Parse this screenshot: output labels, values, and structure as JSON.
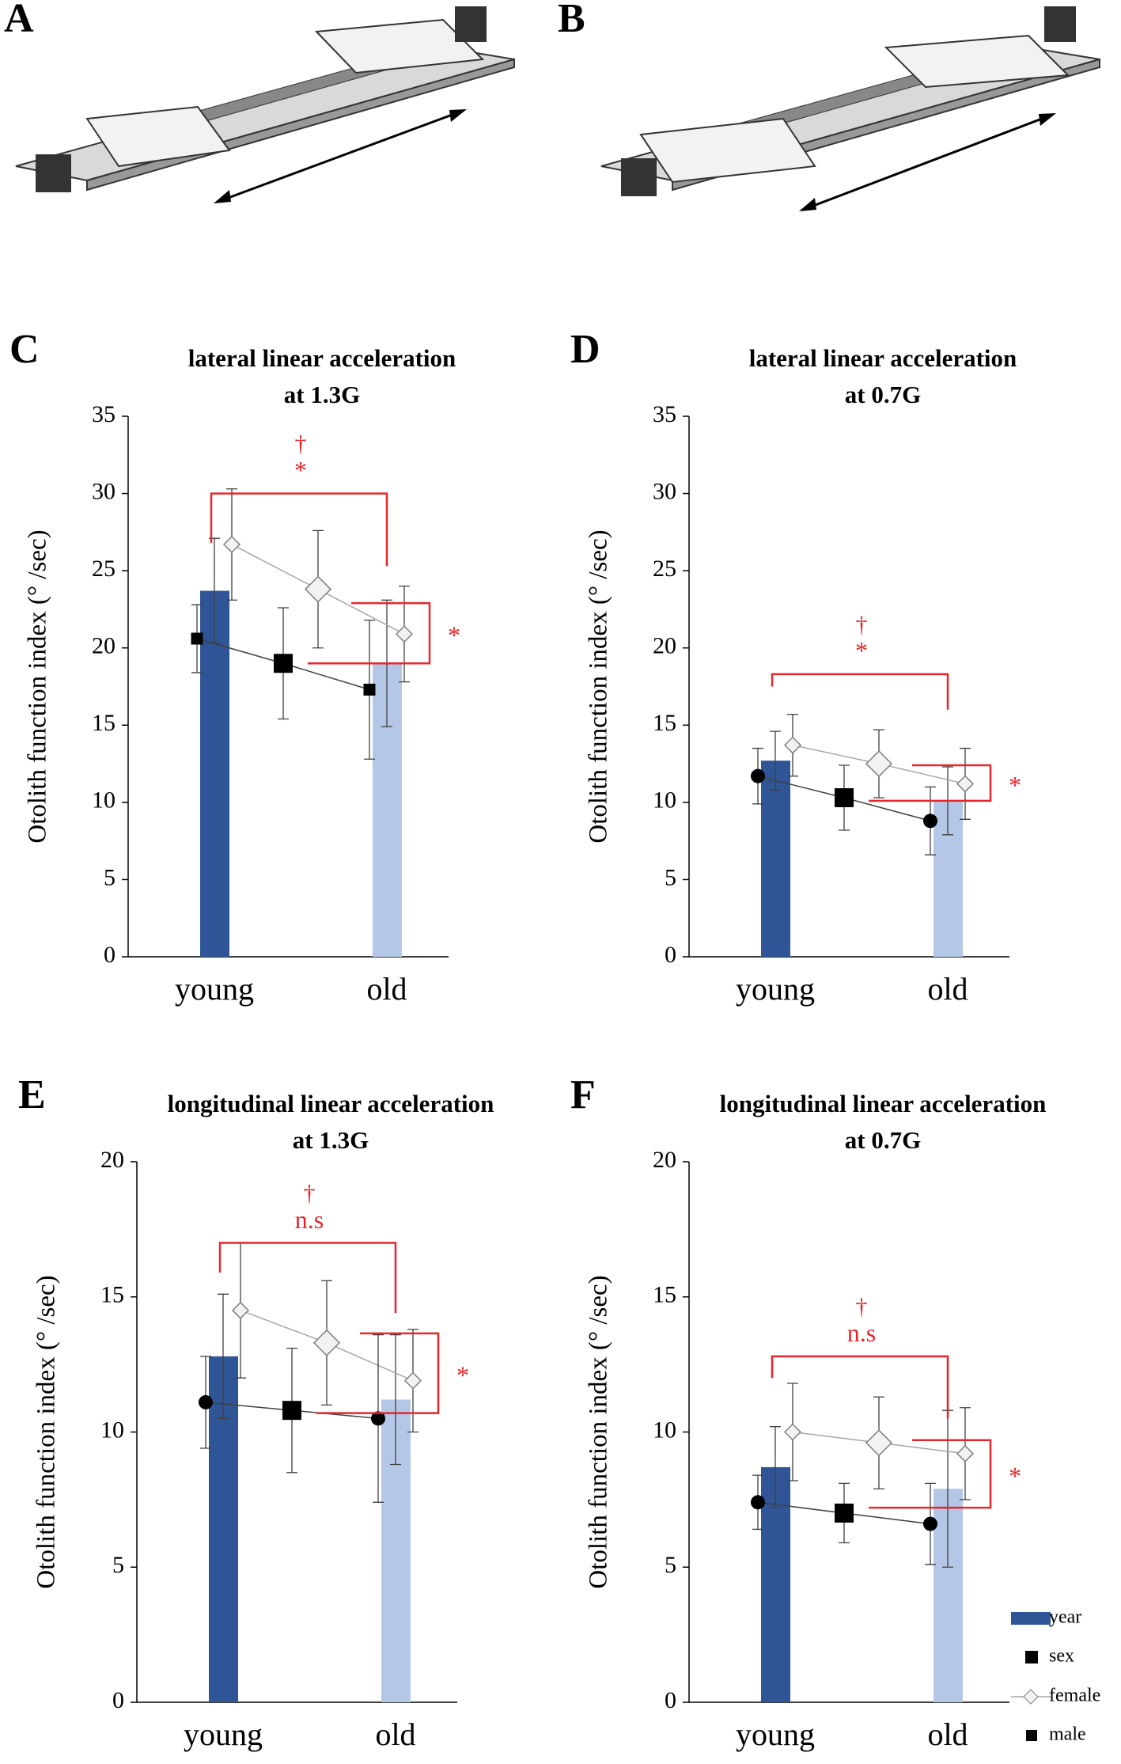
{
  "panel_labels": [
    "A",
    "B"
  ],
  "chart_data": [
    {
      "panel": "C",
      "type": "bar",
      "title": "lateral linear acceleration",
      "subtitle": "at 1.3G",
      "y_label": "Otolith function index (°  /sec)",
      "categories": [
        "young",
        null,
        "old"
      ],
      "ylim": [
        0,
        35
      ],
      "yticks": [
        0,
        5,
        10,
        15,
        20,
        25,
        30,
        35
      ],
      "male_end_marker": "square",
      "series": [
        {
          "type": "bar",
          "colors": [
            "#2f5597",
            null,
            "#b4c7e7"
          ],
          "values": [
            23.7,
            null,
            19.0
          ],
          "errors": [
            3.4,
            null,
            4.1
          ]
        },
        {
          "type": "line",
          "color": "#a6a6a6",
          "marker": "diamond",
          "values": [
            26.7,
            23.8,
            20.9
          ],
          "errors": [
            3.6,
            3.8,
            3.1
          ]
        },
        {
          "type": "line",
          "color": "#000000",
          "marker": "square",
          "values": [
            20.6,
            19.0,
            17.3
          ],
          "errors": [
            2.2,
            3.6,
            4.5
          ]
        }
      ],
      "annotations": [
        "†",
        "*",
        "*"
      ],
      "annotation_color": "#e8262a"
    },
    {
      "panel": "D",
      "type": "bar",
      "title": "lateral linear acceleration",
      "subtitle": "at 0.7G",
      "y_label": "Otolith function index (°  /sec)",
      "categories": [
        "young",
        null,
        "old"
      ],
      "ylim": [
        0,
        35
      ],
      "yticks": [
        0,
        5,
        10,
        15,
        20,
        25,
        30,
        35
      ],
      "male_end_marker": "circle",
      "series": [
        {
          "type": "bar",
          "colors": [
            "#2f5597",
            null,
            "#b4c7e7"
          ],
          "values": [
            12.7,
            null,
            10.1
          ],
          "errors": [
            1.9,
            null,
            2.2
          ]
        },
        {
          "type": "line",
          "color": "#a6a6a6",
          "marker": "diamond",
          "values": [
            13.7,
            12.5,
            11.2
          ],
          "errors": [
            2.0,
            2.2,
            2.3
          ]
        },
        {
          "type": "line",
          "color": "#000000",
          "marker": "square",
          "values": [
            11.7,
            10.3,
            8.8
          ],
          "errors": [
            1.8,
            2.1,
            2.2
          ]
        }
      ],
      "annotations": [
        "†",
        "*",
        "*"
      ],
      "annotation_color": "#e8262a"
    },
    {
      "panel": "E",
      "type": "bar",
      "title": "longitudinal linear acceleration",
      "subtitle": "at 1.3G",
      "y_label": "Otolith function index (°  /sec)",
      "categories": [
        "young",
        null,
        "old"
      ],
      "ylim": [
        0,
        20
      ],
      "yticks": [
        0,
        5,
        10,
        15,
        20
      ],
      "male_end_marker": "circle",
      "series": [
        {
          "type": "bar",
          "colors": [
            "#2f5597",
            null,
            "#b4c7e7"
          ],
          "values": [
            12.8,
            null,
            11.2
          ],
          "errors": [
            2.3,
            null,
            2.4
          ]
        },
        {
          "type": "line",
          "color": "#a6a6a6",
          "marker": "diamond",
          "values": [
            14.5,
            13.3,
            11.9
          ],
          "errors": [
            2.5,
            2.3,
            1.9
          ]
        },
        {
          "type": "line",
          "color": "#000000",
          "marker": "square",
          "values": [
            11.1,
            10.8,
            10.5
          ],
          "errors": [
            1.7,
            2.3,
            3.1
          ]
        }
      ],
      "annotations": [
        "†",
        "n.s",
        "*"
      ],
      "annotation_color": "#e8262a"
    },
    {
      "panel": "F",
      "type": "bar",
      "title": "longitudinal linear acceleration",
      "subtitle": "at 0.7G",
      "y_label": "Otolith function index (°  /sec)",
      "categories": [
        "young",
        null,
        "old"
      ],
      "ylim": [
        0,
        20
      ],
      "yticks": [
        0,
        5,
        10,
        15,
        20
      ],
      "male_end_marker": "circle",
      "series": [
        {
          "name": "year",
          "type": "bar",
          "colors": [
            "#2f5597",
            null,
            "#b4c7e7"
          ],
          "values": [
            8.7,
            null,
            7.9
          ],
          "errors": [
            1.5,
            null,
            2.9
          ]
        },
        {
          "name": "female",
          "type": "line",
          "color": "#a6a6a6",
          "marker": "diamond",
          "values": [
            10.0,
            9.6,
            9.2
          ],
          "errors": [
            1.8,
            1.7,
            1.7
          ]
        },
        {
          "name": "male",
          "type": "line",
          "color": "#000000",
          "marker": "square",
          "values": [
            7.4,
            7.0,
            6.6
          ],
          "errors": [
            1.0,
            1.1,
            1.5
          ]
        }
      ],
      "sex_legend": "sex",
      "annotations": [
        "†",
        "n.s",
        "*"
      ],
      "annotation_color": "#e8262a"
    }
  ]
}
